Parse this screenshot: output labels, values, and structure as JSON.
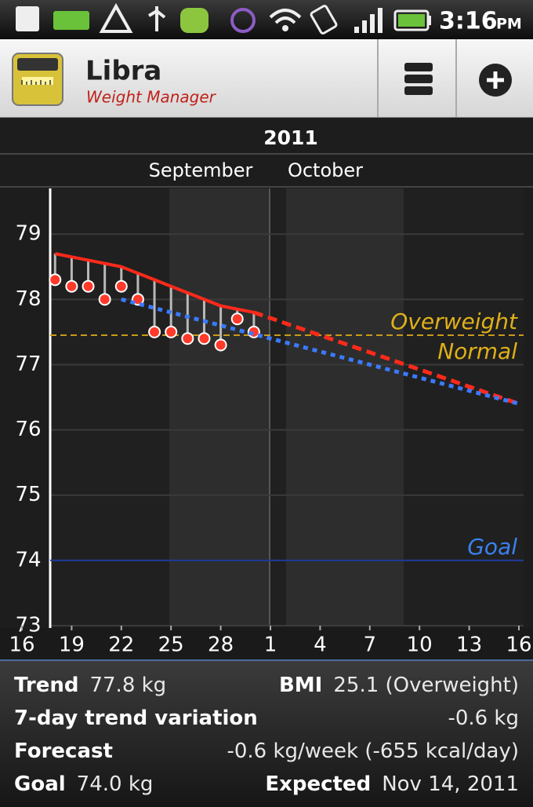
{
  "status_bar": {
    "time": "3:16",
    "period": "PM"
  },
  "header": {
    "title": "Libra",
    "subtitle": "Weight Manager"
  },
  "chart_data": {
    "type": "line",
    "year": "2011",
    "months": [
      "September",
      "October"
    ],
    "xlim": [
      "2011-09-16",
      "2011-10-16"
    ],
    "xticks": [
      {
        "value": "2011-09-16",
        "label": "16"
      },
      {
        "value": "2011-09-19",
        "label": "19"
      },
      {
        "value": "2011-09-22",
        "label": "22"
      },
      {
        "value": "2011-09-25",
        "label": "25"
      },
      {
        "value": "2011-09-28",
        "label": "28"
      },
      {
        "value": "2011-10-01",
        "label": "1"
      },
      {
        "value": "2011-10-04",
        "label": "4"
      },
      {
        "value": "2011-10-07",
        "label": "7"
      },
      {
        "value": "2011-10-10",
        "label": "10"
      },
      {
        "value": "2011-10-13",
        "label": "13"
      },
      {
        "value": "2011-10-16",
        "label": "16"
      }
    ],
    "ylim": [
      73,
      79.7
    ],
    "yticks": [
      73,
      74,
      75,
      76,
      77,
      78,
      79
    ],
    "grid": true,
    "series": [
      {
        "color": "#ff3a2a",
        "style": "points",
        "x": [
          "2011-09-18",
          "2011-09-19",
          "2011-09-20",
          "2011-09-21",
          "2011-09-22",
          "2011-09-23",
          "2011-09-24",
          "2011-09-25",
          "2011-09-26",
          "2011-09-27",
          "2011-09-28",
          "2011-09-29",
          "2011-09-30"
        ],
        "values": [
          78.3,
          78.2,
          78.2,
          78.0,
          78.2,
          78.0,
          77.5,
          77.5,
          77.4,
          77.4,
          77.3,
          77.7,
          77.5
        ]
      },
      {
        "color": "#ff2a1a",
        "style": "solid",
        "x": [
          "2011-09-18",
          "2011-09-19",
          "2011-09-20",
          "2011-09-21",
          "2011-09-22",
          "2011-09-23",
          "2011-09-24",
          "2011-09-25",
          "2011-09-26",
          "2011-09-27",
          "2011-09-28",
          "2011-09-29",
          "2011-09-30"
        ],
        "values": [
          78.7,
          78.65,
          78.6,
          78.55,
          78.5,
          78.4,
          78.3,
          78.2,
          78.1,
          78.0,
          77.9,
          77.85,
          77.8
        ]
      },
      {
        "color": "#ff2a1a",
        "style": "dashed",
        "x": [
          "2011-09-30",
          "2011-10-16"
        ],
        "values": [
          77.8,
          76.4
        ]
      },
      {
        "color": "#3a7aff",
        "style": "dotted",
        "x": [
          "2011-09-22",
          "2011-10-16"
        ],
        "values": [
          78.0,
          76.4
        ]
      }
    ],
    "stems": {
      "from_series": 1,
      "to_series": 0,
      "color": "#b8b8b8"
    },
    "reference_lines": [
      {
        "value": 77.45,
        "color": "#c99a1a",
        "style": "dashed",
        "label_above": "Overweight",
        "label_below": "Normal",
        "label_color": "#e0b01a"
      },
      {
        "value": 74,
        "color": "#1c3a9c",
        "style": "solid",
        "label_above": "Goal",
        "label_color": "#3a82f0"
      }
    ]
  },
  "stats": {
    "rows": [
      {
        "label": "Trend",
        "value": "77.8 kg",
        "right_label": "BMI",
        "right_value": "25.1 (Overweight)"
      },
      {
        "label": "7-day trend variation",
        "right_value": "-0.6 kg"
      },
      {
        "label": "Forecast",
        "right_value": "-0.6 kg/week (-655 kcal/day)"
      },
      {
        "label": "Goal",
        "value": "74.0 kg",
        "right_label": "Expected",
        "right_value": "Nov 14, 2011"
      }
    ]
  }
}
